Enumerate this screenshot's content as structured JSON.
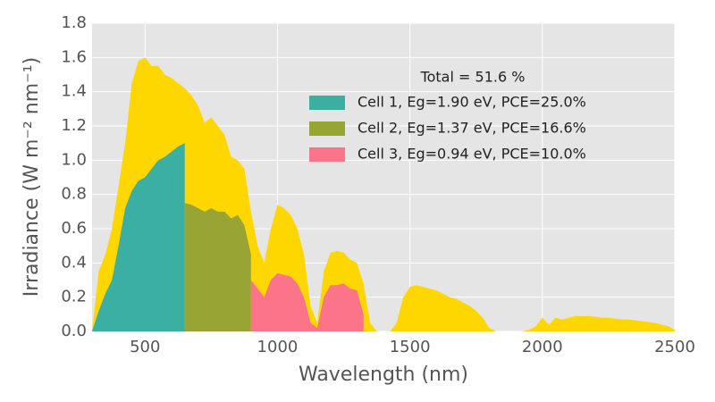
{
  "chart_data": {
    "type": "area",
    "xlabel": "Wavelength (nm)",
    "ylabel": "Irradiance  (W m⁻² nm⁻¹)",
    "legend_title": "Total = 51.6 %",
    "legend_loc": "upper right",
    "grid": true,
    "xlim": [
      300,
      2500
    ],
    "ylim": [
      0,
      1.8
    ],
    "xticks": [
      500,
      1000,
      1500,
      2000,
      2500
    ],
    "yticks": [
      {
        "value": 0,
        "label": "0.0"
      },
      0.2,
      0.4,
      0.6,
      0.8,
      {
        "value": 1,
        "label": "1.0"
      },
      1.2,
      1.4,
      1.6,
      1.8
    ],
    "x": [
      300,
      325,
      350,
      375,
      400,
      425,
      450,
      475,
      500,
      525,
      550,
      575,
      600,
      625,
      650,
      675,
      700,
      725,
      750,
      775,
      800,
      825,
      850,
      875,
      900,
      925,
      950,
      975,
      1000,
      1025,
      1050,
      1075,
      1100,
      1125,
      1150,
      1175,
      1200,
      1225,
      1250,
      1275,
      1300,
      1325,
      1350,
      1375,
      1400,
      1425,
      1450,
      1475,
      1500,
      1525,
      1550,
      1575,
      1600,
      1625,
      1650,
      1675,
      1700,
      1725,
      1750,
      1775,
      1800,
      1825,
      1850,
      1875,
      1900,
      1925,
      1950,
      1975,
      2000,
      2025,
      2050,
      2075,
      2100,
      2125,
      2150,
      2175,
      2200,
      2225,
      2250,
      2275,
      2300,
      2325,
      2350,
      2375,
      2400,
      2425,
      2450,
      2475,
      2500
    ],
    "series": [
      {
        "color": "#ffd700",
        "values": [
          0,
          0.35,
          0.45,
          0.6,
          0.85,
          1.1,
          1.45,
          1.58,
          1.6,
          1.55,
          1.55,
          1.5,
          1.48,
          1.45,
          1.42,
          1.38,
          1.32,
          1.22,
          1.25,
          1.2,
          1.15,
          1.02,
          1.0,
          0.95,
          0.7,
          0.5,
          0.4,
          0.6,
          0.74,
          0.72,
          0.68,
          0.6,
          0.45,
          0.15,
          0.05,
          0.35,
          0.46,
          0.47,
          0.46,
          0.42,
          0.4,
          0.28,
          0.05,
          0,
          0,
          0,
          0.05,
          0.2,
          0.26,
          0.27,
          0.26,
          0.25,
          0.24,
          0.22,
          0.2,
          0.19,
          0.17,
          0.15,
          0.12,
          0.08,
          0.02,
          0,
          0,
          0,
          0,
          0,
          0.01,
          0.03,
          0.08,
          0.04,
          0.08,
          0.07,
          0.08,
          0.09,
          0.09,
          0.09,
          0.085,
          0.08,
          0.08,
          0.075,
          0.07,
          0.07,
          0.065,
          0.06,
          0.055,
          0.05,
          0.04,
          0.03,
          0.01
        ]
      },
      {
        "name": "Cell 1, Eg=1.90 eV, PCE=25.0%",
        "color": "#3aafa2",
        "values": [
          0,
          0.12,
          0.22,
          0.3,
          0.5,
          0.72,
          0.82,
          0.88,
          0.9,
          0.95,
          1.0,
          1.02,
          1.05,
          1.08,
          1.1,
          null,
          null,
          null,
          null,
          null,
          null,
          null,
          null,
          null,
          null,
          null,
          null,
          null,
          null,
          null,
          null,
          null,
          null,
          null,
          null,
          null,
          null,
          null,
          null,
          null,
          null,
          null,
          null,
          null,
          null,
          null,
          null,
          null,
          null,
          null,
          null,
          null,
          null,
          null,
          null,
          null,
          null,
          null,
          null,
          null,
          null,
          null,
          null,
          null,
          null,
          null,
          null,
          null,
          null,
          null,
          null,
          null,
          null,
          null,
          null,
          null,
          null,
          null,
          null,
          null,
          null,
          null,
          null,
          null,
          null,
          null,
          null,
          null,
          null
        ]
      },
      {
        "name": "Cell 2, Eg=1.37 eV, PCE=16.6%",
        "color": "#98a534",
        "values": [
          null,
          null,
          null,
          null,
          null,
          null,
          null,
          null,
          null,
          null,
          null,
          null,
          null,
          null,
          0.75,
          0.74,
          0.72,
          0.7,
          0.72,
          0.7,
          0.7,
          0.66,
          0.68,
          0.62,
          0.45,
          null,
          null,
          null,
          null,
          null,
          null,
          null,
          null,
          null,
          null,
          null,
          null,
          null,
          null,
          null,
          null,
          null,
          null,
          null,
          null,
          null,
          null,
          null,
          null,
          null,
          null,
          null,
          null,
          null,
          null,
          null,
          null,
          null,
          null,
          null,
          null,
          null,
          null,
          null,
          null,
          null,
          null,
          null,
          null,
          null,
          null,
          null,
          null,
          null,
          null,
          null,
          null,
          null,
          null,
          null,
          null,
          null,
          null,
          null,
          null,
          null,
          null,
          null,
          null
        ]
      },
      {
        "name": "Cell 3, Eg=0.94 eV, PCE=10.0%",
        "color": "#fc7489",
        "values": [
          null,
          null,
          null,
          null,
          null,
          null,
          null,
          null,
          null,
          null,
          null,
          null,
          null,
          null,
          null,
          null,
          null,
          null,
          null,
          null,
          null,
          null,
          null,
          null,
          0.3,
          0.25,
          0.2,
          0.3,
          0.34,
          0.33,
          0.32,
          0.28,
          0.2,
          0.05,
          0.02,
          0.2,
          0.27,
          0.27,
          0.28,
          0.25,
          0.24,
          0.1,
          null,
          null,
          null,
          null,
          null,
          null,
          null,
          null,
          null,
          null,
          null,
          null,
          null,
          null,
          null,
          null,
          null,
          null,
          null,
          null,
          null,
          null,
          null,
          null,
          null,
          null,
          null,
          null,
          null,
          null,
          null,
          null,
          null,
          null,
          null,
          null,
          null,
          null,
          null,
          null,
          null,
          null,
          null,
          null,
          null,
          null,
          null
        ]
      }
    ]
  }
}
